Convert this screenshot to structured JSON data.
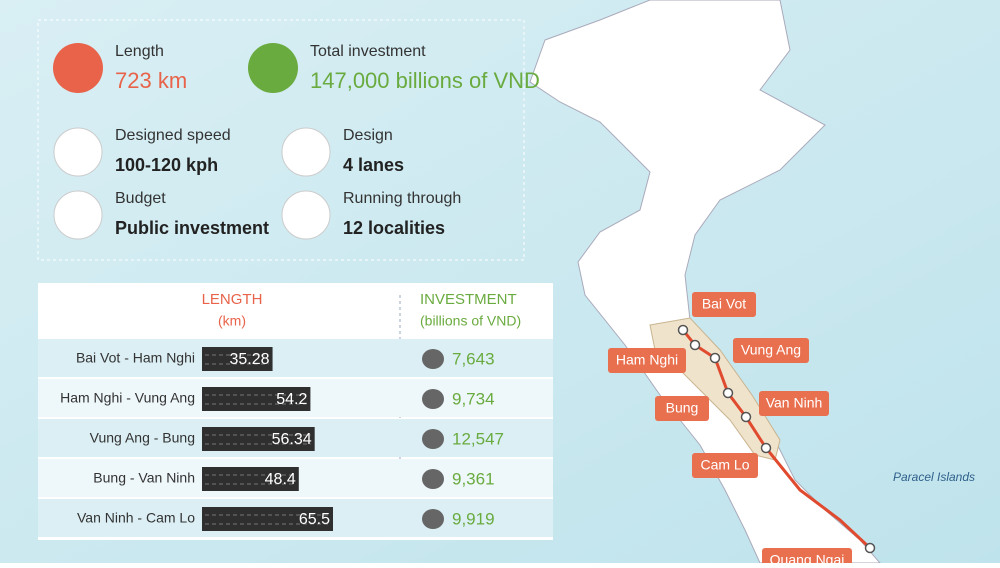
{
  "stats": [
    {
      "label": "Length",
      "value": "723 km"
    },
    {
      "label": "Total investment",
      "value": "147,000 billions of VND"
    },
    {
      "label": "Designed speed",
      "value": "100-120 kph"
    },
    {
      "label": "Design",
      "value": "4 lanes"
    },
    {
      "label": "Budget",
      "value": "Public investment"
    },
    {
      "label": "Running through",
      "value": "12 localities"
    }
  ],
  "table": {
    "length_header": "LENGTH",
    "length_unit": "(km)",
    "investment_header": "INVESTMENT",
    "investment_unit": "(billions of VND)",
    "rows": [
      {
        "section": "Bai Vot - Ham Nghi",
        "length": 35.28,
        "investment": 7643,
        "investment_label": "7,643"
      },
      {
        "section": "Ham Nghi - Vung Ang",
        "length": 54.2,
        "investment": 9734,
        "investment_label": "9,734"
      },
      {
        "section": "Vung Ang - Bung",
        "length": 56.34,
        "investment": 12547,
        "investment_label": "12,547"
      },
      {
        "section": "Bung - Van Ninh",
        "length": 48.4,
        "investment": 9361,
        "investment_label": "9,361"
      },
      {
        "section": "Van Ninh - Cam Lo",
        "length": 65.5,
        "investment": 9919,
        "investment_label": "9,919"
      }
    ]
  },
  "map": {
    "places": [
      "Bai Vot",
      "Ham Nghi",
      "Vung Ang",
      "Bung",
      "Van Ninh",
      "Cam Lo",
      "Quang Ngai"
    ],
    "islands": "Paracel Islands"
  }
}
